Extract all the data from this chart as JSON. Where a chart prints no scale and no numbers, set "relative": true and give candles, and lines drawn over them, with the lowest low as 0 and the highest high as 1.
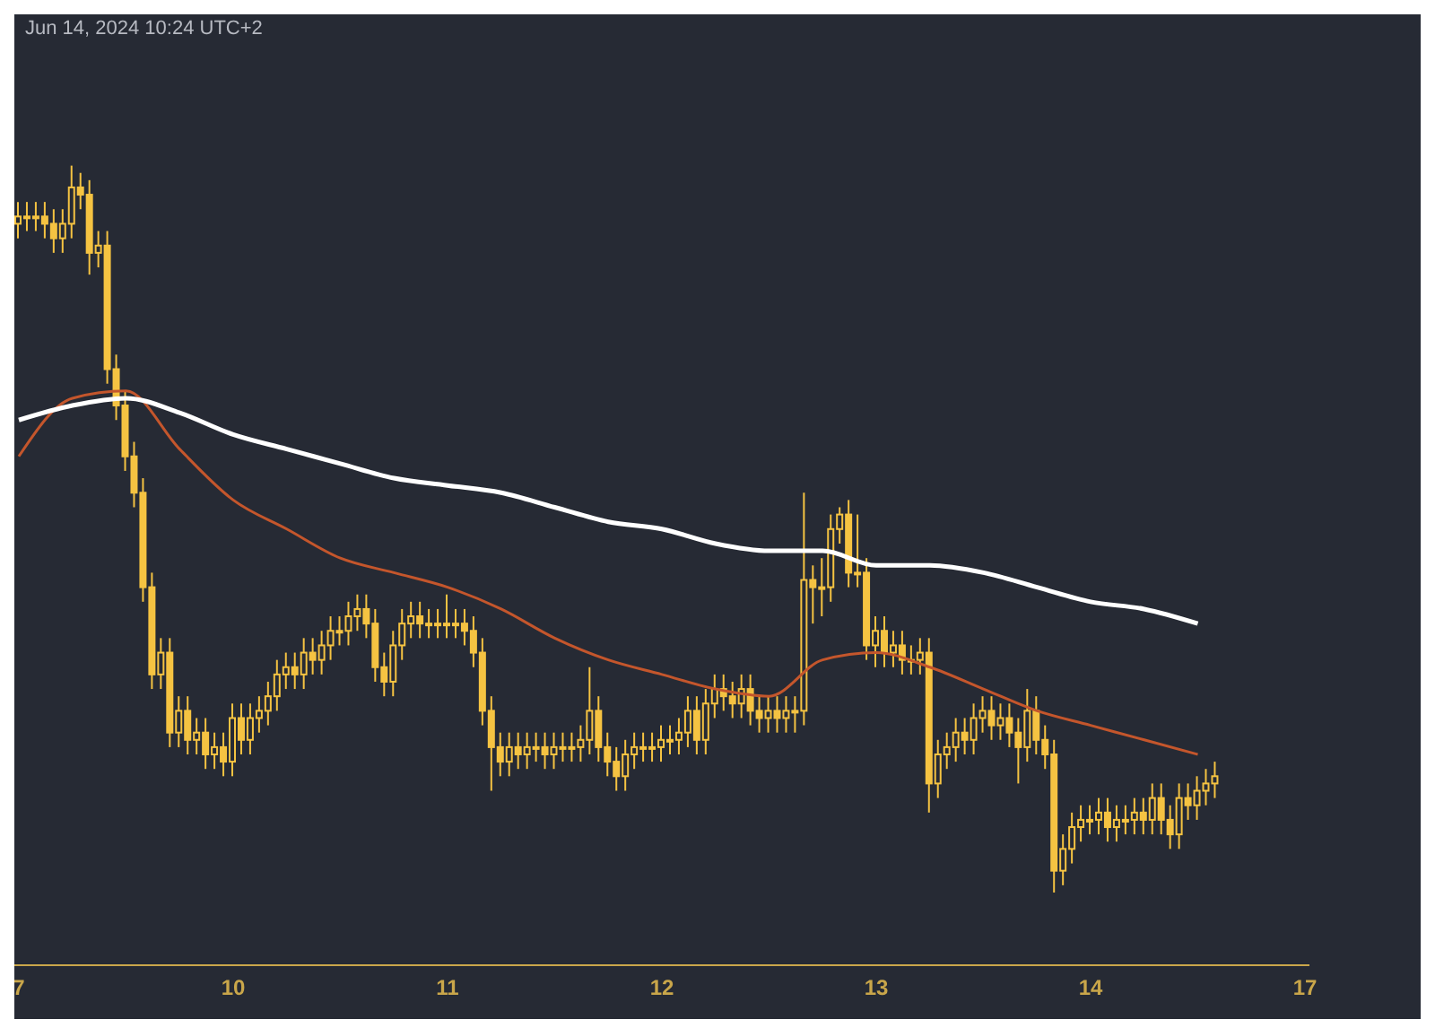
{
  "chart_data": {
    "type": "candlestick",
    "title": "Jun 14, 2024 10:24 UTC+2",
    "relative": true,
    "color": "#f5c342",
    "grid": false,
    "legend": false,
    "categories": [
      "7",
      null,
      null,
      null,
      null,
      null,
      null,
      null,
      null,
      null,
      null,
      null,
      null,
      null,
      null,
      null,
      null,
      null,
      null,
      null,
      null,
      null,
      null,
      null,
      "10",
      null,
      null,
      null,
      null,
      null,
      null,
      null,
      null,
      null,
      null,
      null,
      null,
      null,
      null,
      null,
      null,
      null,
      null,
      null,
      null,
      null,
      null,
      null,
      "11",
      null,
      null,
      null,
      null,
      null,
      null,
      null,
      null,
      null,
      null,
      null,
      null,
      null,
      null,
      null,
      null,
      null,
      null,
      null,
      null,
      null,
      null,
      null,
      "12",
      null,
      null,
      null,
      null,
      null,
      null,
      null,
      null,
      null,
      null,
      null,
      null,
      null,
      null,
      null,
      null,
      null,
      null,
      null,
      null,
      null,
      null,
      null,
      "13",
      null,
      null,
      null,
      null,
      null,
      null,
      null,
      null,
      null,
      null,
      null,
      null,
      null,
      null,
      null,
      null,
      null,
      null,
      null,
      null,
      null,
      null,
      null,
      "14",
      null,
      null,
      null,
      null,
      null,
      null,
      null,
      null,
      null,
      null,
      null,
      null,
      null,
      null,
      null,
      null,
      null,
      null,
      null,
      null,
      null,
      null,
      null,
      "17"
    ],
    "ohlc": [
      [
        0.92,
        0.95,
        0.9,
        0.93
      ],
      [
        0.93,
        0.95,
        0.91,
        0.93
      ],
      [
        0.93,
        0.95,
        0.91,
        0.93
      ],
      [
        0.93,
        0.95,
        0.9,
        0.92
      ],
      [
        0.92,
        0.94,
        0.88,
        0.9
      ],
      [
        0.9,
        0.94,
        0.88,
        0.92
      ],
      [
        0.92,
        1.0,
        0.9,
        0.97
      ],
      [
        0.97,
        0.99,
        0.94,
        0.96
      ],
      [
        0.96,
        0.98,
        0.85,
        0.88
      ],
      [
        0.88,
        0.91,
        0.86,
        0.89
      ],
      [
        0.89,
        0.91,
        0.7,
        0.72
      ],
      [
        0.72,
        0.74,
        0.65,
        0.67
      ],
      [
        0.67,
        0.69,
        0.58,
        0.6
      ],
      [
        0.6,
        0.62,
        0.53,
        0.55
      ],
      [
        0.55,
        0.57,
        0.4,
        0.42
      ],
      [
        0.42,
        0.44,
        0.28,
        0.3
      ],
      [
        0.3,
        0.35,
        0.28,
        0.33
      ],
      [
        0.33,
        0.35,
        0.2,
        0.22
      ],
      [
        0.22,
        0.27,
        0.2,
        0.25
      ],
      [
        0.25,
        0.27,
        0.19,
        0.21
      ],
      [
        0.21,
        0.24,
        0.19,
        0.22
      ],
      [
        0.22,
        0.24,
        0.17,
        0.19
      ],
      [
        0.19,
        0.22,
        0.17,
        0.2
      ],
      [
        0.2,
        0.22,
        0.16,
        0.18
      ],
      [
        0.18,
        0.26,
        0.16,
        0.24
      ],
      [
        0.24,
        0.26,
        0.19,
        0.21
      ],
      [
        0.21,
        0.26,
        0.19,
        0.24
      ],
      [
        0.24,
        0.27,
        0.22,
        0.25
      ],
      [
        0.25,
        0.29,
        0.23,
        0.27
      ],
      [
        0.27,
        0.32,
        0.25,
        0.3
      ],
      [
        0.3,
        0.33,
        0.28,
        0.31
      ],
      [
        0.31,
        0.33,
        0.28,
        0.3
      ],
      [
        0.3,
        0.35,
        0.28,
        0.33
      ],
      [
        0.33,
        0.35,
        0.3,
        0.32
      ],
      [
        0.32,
        0.36,
        0.3,
        0.34
      ],
      [
        0.34,
        0.38,
        0.32,
        0.36
      ],
      [
        0.36,
        0.38,
        0.34,
        0.36
      ],
      [
        0.36,
        0.4,
        0.34,
        0.38
      ],
      [
        0.38,
        0.41,
        0.36,
        0.39
      ],
      [
        0.39,
        0.41,
        0.35,
        0.37
      ],
      [
        0.37,
        0.39,
        0.29,
        0.31
      ],
      [
        0.31,
        0.33,
        0.27,
        0.29
      ],
      [
        0.29,
        0.36,
        0.27,
        0.34
      ],
      [
        0.34,
        0.39,
        0.32,
        0.37
      ],
      [
        0.37,
        0.4,
        0.35,
        0.38
      ],
      [
        0.38,
        0.4,
        0.35,
        0.37
      ],
      [
        0.37,
        0.39,
        0.35,
        0.37
      ],
      [
        0.37,
        0.39,
        0.35,
        0.37
      ],
      [
        0.37,
        0.41,
        0.35,
        0.37
      ],
      [
        0.37,
        0.39,
        0.35,
        0.37
      ],
      [
        0.37,
        0.39,
        0.34,
        0.36
      ],
      [
        0.36,
        0.38,
        0.31,
        0.33
      ],
      [
        0.33,
        0.35,
        0.23,
        0.25
      ],
      [
        0.25,
        0.27,
        0.14,
        0.2
      ],
      [
        0.2,
        0.22,
        0.16,
        0.18
      ],
      [
        0.18,
        0.22,
        0.16,
        0.2
      ],
      [
        0.2,
        0.22,
        0.17,
        0.19
      ],
      [
        0.19,
        0.22,
        0.17,
        0.2
      ],
      [
        0.2,
        0.22,
        0.18,
        0.2
      ],
      [
        0.2,
        0.22,
        0.17,
        0.19
      ],
      [
        0.19,
        0.22,
        0.17,
        0.2
      ],
      [
        0.2,
        0.22,
        0.18,
        0.2
      ],
      [
        0.2,
        0.22,
        0.18,
        0.2
      ],
      [
        0.2,
        0.23,
        0.18,
        0.21
      ],
      [
        0.21,
        0.31,
        0.19,
        0.25
      ],
      [
        0.25,
        0.27,
        0.18,
        0.2
      ],
      [
        0.2,
        0.22,
        0.16,
        0.18
      ],
      [
        0.18,
        0.2,
        0.14,
        0.16
      ],
      [
        0.16,
        0.21,
        0.14,
        0.19
      ],
      [
        0.19,
        0.22,
        0.17,
        0.2
      ],
      [
        0.2,
        0.22,
        0.18,
        0.2
      ],
      [
        0.2,
        0.22,
        0.18,
        0.2
      ],
      [
        0.2,
        0.23,
        0.18,
        0.21
      ],
      [
        0.21,
        0.23,
        0.19,
        0.21
      ],
      [
        0.21,
        0.24,
        0.19,
        0.22
      ],
      [
        0.22,
        0.27,
        0.2,
        0.25
      ],
      [
        0.25,
        0.27,
        0.19,
        0.21
      ],
      [
        0.21,
        0.28,
        0.19,
        0.26
      ],
      [
        0.26,
        0.3,
        0.24,
        0.28
      ],
      [
        0.28,
        0.3,
        0.25,
        0.27
      ],
      [
        0.27,
        0.29,
        0.24,
        0.26
      ],
      [
        0.26,
        0.3,
        0.24,
        0.28
      ],
      [
        0.28,
        0.3,
        0.23,
        0.25
      ],
      [
        0.25,
        0.27,
        0.22,
        0.24
      ],
      [
        0.24,
        0.27,
        0.22,
        0.25
      ],
      [
        0.25,
        0.27,
        0.22,
        0.24
      ],
      [
        0.24,
        0.27,
        0.22,
        0.25
      ],
      [
        0.25,
        0.27,
        0.22,
        0.25
      ],
      [
        0.25,
        0.55,
        0.23,
        0.43
      ],
      [
        0.43,
        0.45,
        0.37,
        0.42
      ],
      [
        0.42,
        0.46,
        0.38,
        0.42
      ],
      [
        0.42,
        0.52,
        0.4,
        0.5
      ],
      [
        0.5,
        0.53,
        0.48,
        0.52
      ],
      [
        0.52,
        0.54,
        0.42,
        0.44
      ],
      [
        0.44,
        0.52,
        0.42,
        0.44
      ],
      [
        0.44,
        0.46,
        0.32,
        0.34
      ],
      [
        0.34,
        0.38,
        0.31,
        0.36
      ],
      [
        0.36,
        0.38,
        0.31,
        0.33
      ],
      [
        0.33,
        0.36,
        0.31,
        0.34
      ],
      [
        0.34,
        0.36,
        0.3,
        0.32
      ],
      [
        0.32,
        0.34,
        0.3,
        0.32
      ],
      [
        0.32,
        0.35,
        0.3,
        0.33
      ],
      [
        0.33,
        0.35,
        0.11,
        0.15
      ],
      [
        0.15,
        0.21,
        0.13,
        0.19
      ],
      [
        0.19,
        0.22,
        0.17,
        0.2
      ],
      [
        0.2,
        0.24,
        0.18,
        0.22
      ],
      [
        0.22,
        0.24,
        0.19,
        0.21
      ],
      [
        0.21,
        0.26,
        0.19,
        0.24
      ],
      [
        0.24,
        0.27,
        0.22,
        0.25
      ],
      [
        0.25,
        0.27,
        0.21,
        0.23
      ],
      [
        0.23,
        0.26,
        0.21,
        0.24
      ],
      [
        0.24,
        0.26,
        0.2,
        0.22
      ],
      [
        0.22,
        0.24,
        0.15,
        0.2
      ],
      [
        0.2,
        0.28,
        0.18,
        0.25
      ],
      [
        0.25,
        0.27,
        0.19,
        0.21
      ],
      [
        0.21,
        0.23,
        0.17,
        0.19
      ],
      [
        0.19,
        0.21,
        0.0,
        0.03
      ],
      [
        0.03,
        0.08,
        0.01,
        0.06
      ],
      [
        0.06,
        0.11,
        0.04,
        0.09
      ],
      [
        0.09,
        0.12,
        0.07,
        0.1
      ],
      [
        0.1,
        0.12,
        0.08,
        0.1
      ],
      [
        0.1,
        0.13,
        0.08,
        0.11
      ],
      [
        0.11,
        0.13,
        0.07,
        0.09
      ],
      [
        0.09,
        0.12,
        0.07,
        0.1
      ],
      [
        0.1,
        0.12,
        0.08,
        0.1
      ],
      [
        0.1,
        0.13,
        0.08,
        0.11
      ],
      [
        0.11,
        0.13,
        0.08,
        0.1
      ],
      [
        0.1,
        0.15,
        0.08,
        0.13
      ],
      [
        0.13,
        0.15,
        0.08,
        0.1
      ],
      [
        0.1,
        0.12,
        0.06,
        0.08
      ],
      [
        0.08,
        0.15,
        0.06,
        0.13
      ],
      [
        0.13,
        0.15,
        0.1,
        0.12
      ],
      [
        0.12,
        0.16,
        0.1,
        0.14
      ],
      [
        0.14,
        0.17,
        0.12,
        0.15
      ],
      [
        0.15,
        0.18,
        0.13,
        0.16
      ],
      null,
      null,
      null,
      null,
      null,
      null,
      null,
      null,
      null,
      null
    ],
    "series": [
      {
        "type": "line",
        "color": "#c4562c",
        "values": [
          0.6,
          null,
          null,
          null,
          null,
          null,
          0.68,
          null,
          null,
          null,
          null,
          null,
          0.69,
          null,
          null,
          null,
          null,
          null,
          0.61,
          null,
          null,
          null,
          null,
          null,
          0.54,
          null,
          null,
          null,
          null,
          null,
          0.5,
          null,
          null,
          null,
          null,
          null,
          0.46,
          null,
          null,
          null,
          null,
          null,
          0.44,
          null,
          null,
          null,
          null,
          null,
          0.42,
          null,
          null,
          null,
          null,
          null,
          0.39,
          null,
          null,
          null,
          null,
          null,
          0.35,
          null,
          null,
          null,
          null,
          null,
          0.32,
          null,
          null,
          null,
          null,
          null,
          0.3,
          null,
          null,
          null,
          null,
          null,
          0.28,
          null,
          null,
          null,
          null,
          null,
          0.27,
          null,
          null,
          null,
          null,
          null,
          0.32,
          null,
          null,
          null,
          null,
          null,
          0.33,
          null,
          null,
          null,
          null,
          null,
          0.31,
          null,
          null,
          null,
          null,
          null,
          0.28,
          null,
          null,
          null,
          null,
          null,
          0.25,
          null,
          null,
          null,
          null,
          null,
          0.23,
          null,
          null,
          null,
          null,
          null,
          0.21,
          null,
          null,
          null,
          null,
          null,
          0.19,
          null,
          null,
          null,
          null,
          null,
          null,
          null,
          null,
          null,
          null,
          null,
          null
        ]
      },
      {
        "type": "line",
        "color": "#ffffff",
        "values": [
          0.65,
          null,
          null,
          null,
          null,
          null,
          0.67,
          null,
          null,
          null,
          null,
          null,
          0.68,
          null,
          null,
          null,
          null,
          null,
          0.66,
          null,
          null,
          null,
          null,
          null,
          0.63,
          null,
          null,
          null,
          null,
          null,
          0.61,
          null,
          null,
          null,
          null,
          null,
          0.59,
          null,
          null,
          null,
          null,
          null,
          0.57,
          null,
          null,
          null,
          null,
          null,
          0.56,
          null,
          null,
          null,
          null,
          null,
          0.55,
          null,
          null,
          null,
          null,
          null,
          0.53,
          null,
          null,
          null,
          null,
          null,
          0.51,
          null,
          null,
          null,
          null,
          null,
          0.5,
          null,
          null,
          null,
          null,
          null,
          0.48,
          null,
          null,
          null,
          null,
          null,
          0.47,
          null,
          null,
          null,
          null,
          null,
          0.47,
          null,
          null,
          null,
          null,
          null,
          0.45,
          null,
          null,
          null,
          null,
          null,
          0.45,
          null,
          null,
          null,
          null,
          null,
          0.44,
          null,
          null,
          null,
          null,
          null,
          0.42,
          null,
          null,
          null,
          null,
          null,
          0.4,
          null,
          null,
          null,
          null,
          null,
          0.39,
          null,
          null,
          null,
          null,
          null,
          0.37,
          null,
          null,
          null,
          null,
          null,
          null,
          null,
          null,
          null,
          null,
          null,
          null
        ]
      }
    ]
  }
}
